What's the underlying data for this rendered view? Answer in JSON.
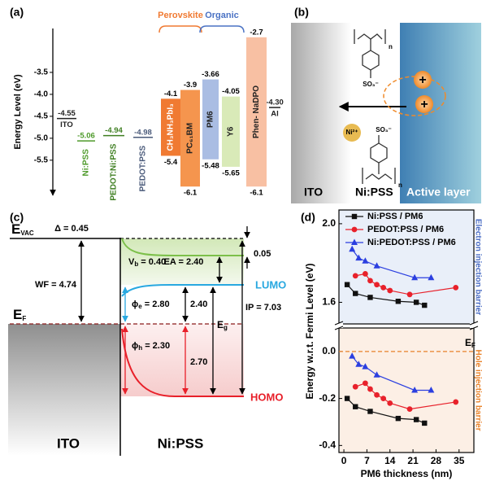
{
  "chart_data": [
    {
      "type": "energy-level",
      "label": "(a)",
      "ylabel": "Energy Level (eV)",
      "ylim": [
        -6.3,
        -2.5
      ],
      "yticks": [
        -3.5,
        {
          "value": -4,
          "label": "-4.0"
        },
        -4.5,
        {
          "value": -5,
          "label": "-5.0"
        },
        -5.5
      ],
      "levels": [
        {
          "name": "ITO",
          "value": -4.55,
          "color": "#222222"
        },
        {
          "name": "Ni:PSS",
          "value": -5.06,
          "color": "#4e9a2a"
        },
        {
          "name": "PEDOT:Ni:PSS",
          "value": -4.94,
          "color": "#3f7f22"
        },
        {
          "name": "PEDOT:PSS",
          "value": -4.98,
          "color": "#4a5a7a"
        },
        {
          "name": "Al",
          "value": -4.3,
          "value_label": "-4.30",
          "color": "#222222"
        }
      ],
      "bars": [
        {
          "name": "CH₃NH₃PbI₃",
          "lumo": -4.1,
          "homo": -5.4,
          "color": "#f07a32",
          "text_color": "#ffffff"
        },
        {
          "name": "PC₆₁BM",
          "lumo": -3.9,
          "homo": -6.1,
          "color": "#f5954e",
          "text_color": "#222222"
        },
        {
          "name": "PM6",
          "lumo": -3.66,
          "homo": -5.48,
          "color": "#aabde3",
          "text_color": "#222222"
        },
        {
          "name": "Y6",
          "lumo": -4.05,
          "homo": -5.65,
          "color": "#d9eab8",
          "text_color": "#222222"
        },
        {
          "name": "Phen- NaDPO",
          "lumo": -2.7,
          "homo": -6.1,
          "color": "#f8c0a3",
          "text_color": "#222222"
        }
      ],
      "groups": [
        {
          "name": "Perovskite",
          "color": "#f07a32"
        },
        {
          "name": "Organic",
          "color": "#4a72c4"
        }
      ]
    },
    {
      "type": "line",
      "label": "(d)",
      "xlabel": "PM6 thickness (nm)",
      "ylabel": "Energy w.r.t. Fermi Level (eV)",
      "xlim": [
        -1.5,
        39.5
      ],
      "xticks": [
        0,
        7,
        14,
        21,
        28,
        35
      ],
      "upper": {
        "ylim": [
          1.49,
          2.07
        ],
        "yticks": [
          1.6,
          {
            "value": 2,
            "label": "2.0"
          }
        ],
        "background": "#e9eff9",
        "annotation": "Electron injection barrier",
        "annotation_color": "#4a6cc4",
        "series": [
          {
            "name": "Ni:PSS / PM6",
            "color": "#111111",
            "marker": "square",
            "x": [
              1,
              3.5,
              8,
              16.5,
              22,
              24.5
            ],
            "values": [
              1.69,
              1.645,
              1.625,
              1.605,
              1.6,
              1.585
            ]
          },
          {
            "name": "PEDOT:PSS / PM6",
            "color": "#e8212b",
            "marker": "circle",
            "x": [
              3.5,
              6.5,
              8,
              10,
              12,
              14,
              20,
              34
            ],
            "values": [
              1.735,
              1.745,
              1.71,
              1.69,
              1.675,
              1.66,
              1.64,
              1.675
            ]
          },
          {
            "name": "Ni:PEDOT:PSS / PM6",
            "color": "#2b3fe0",
            "marker": "triangle",
            "x": [
              2.5,
              4.5,
              6.5,
              10,
              21.5,
              26.5
            ],
            "values": [
              1.87,
              1.825,
              1.81,
              1.785,
              1.725,
              1.725
            ]
          }
        ]
      },
      "lower": {
        "ylim": [
          -0.43,
          0.1
        ],
        "yticks": [
          {
            "value": 0,
            "label": "0.0"
          },
          -0.2,
          -0.4
        ],
        "background": "#fcefe5",
        "annotation": "Hole injection barrier",
        "annotation_color": "#e8822a",
        "reference_line": {
          "value": 0,
          "color": "#e8822a",
          "symbol": "E",
          "subscript": "F"
        },
        "series": [
          {
            "color": "#111111",
            "marker": "square",
            "x": [
              1,
              3.5,
              8,
              16.5,
              22,
              24.5
            ],
            "values": [
              -0.2,
              -0.235,
              -0.255,
              -0.285,
              -0.29,
              -0.305
            ]
          },
          {
            "color": "#e8212b",
            "marker": "circle",
            "x": [
              3.5,
              6.5,
              8,
              10,
              12,
              14,
              20,
              34
            ],
            "values": [
              -0.15,
              -0.135,
              -0.16,
              -0.185,
              -0.2,
              -0.22,
              -0.245,
              -0.215
            ]
          },
          {
            "color": "#2b3fe0",
            "marker": "triangle",
            "x": [
              2.5,
              4.5,
              6.5,
              10,
              21.5,
              26.5
            ],
            "values": [
              -0.02,
              -0.055,
              -0.065,
              -0.1,
              -0.165,
              -0.165
            ]
          }
        ]
      }
    }
  ],
  "schematic": {
    "label": "(b)",
    "regions": [
      "ITO",
      "Ni:PSS",
      "Active layer"
    ],
    "ion": "Ni²⁺",
    "groups": [
      "SO₃⁻",
      "SO₃⁻"
    ],
    "repeats": [
      "n",
      "n"
    ],
    "charges": [
      "+",
      "+"
    ]
  },
  "band_diagram": {
    "label": "(c)",
    "evac": {
      "symbol": "E",
      "subscript": "VAC"
    },
    "ef": {
      "symbol": "E",
      "subscript": "F"
    },
    "delta": "Δ = 0.45",
    "offset": "0.05",
    "wf": "WF = 4.74",
    "vb": {
      "symbol": "V",
      "subscript": "b",
      "text": " = 0.40"
    },
    "ea": "EA = 2.40",
    "lumo": "LUMO",
    "phi_e": {
      "symbol": "ϕ",
      "subscript": "e",
      "text": " = 2.80"
    },
    "lumo_gap": "2.40",
    "eg": {
      "symbol": "E",
      "subscript": "g"
    },
    "ip": "IP = 7.03",
    "phi_h": {
      "symbol": "ϕ",
      "subscript": "h",
      "text": " = 2.30"
    },
    "homo_gap": "2.70",
    "homo": "HOMO",
    "regions": [
      "ITO",
      "Ni:PSS"
    ]
  }
}
